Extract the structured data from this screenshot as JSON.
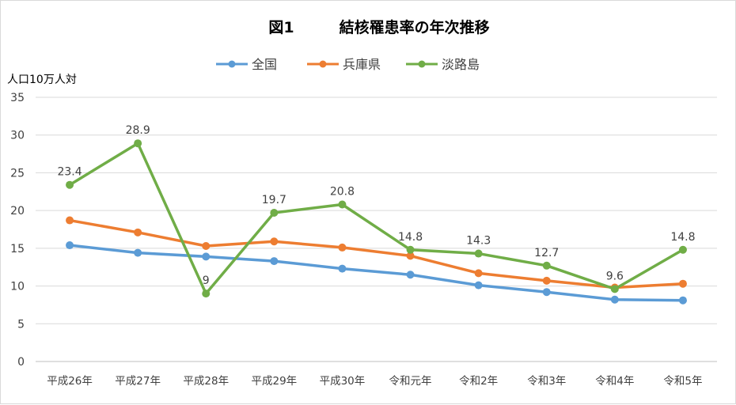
{
  "chart_data": {
    "type": "line",
    "title": "図1　　　結核罹患率の年次推移",
    "ylabel": "人口10万人対",
    "xlabel": "",
    "ylim": [
      0,
      35
    ],
    "yticks": [
      0,
      5,
      10,
      15,
      20,
      25,
      30,
      35
    ],
    "grid": true,
    "legend": "top",
    "categories": [
      "平成26年",
      "平成27年",
      "平成28年",
      "平成29年",
      "平成30年",
      "令和元年",
      "令和2年",
      "令和3年",
      "令和4年",
      "令和5年"
    ],
    "series": [
      {
        "name": "全国",
        "color": "#5b9bd5",
        "values": [
          15.4,
          14.4,
          13.9,
          13.3,
          12.3,
          11.5,
          10.1,
          9.2,
          8.2,
          8.1
        ],
        "labels": false
      },
      {
        "name": "兵庫県",
        "color": "#ed7d31",
        "values": [
          18.7,
          17.1,
          15.3,
          15.9,
          15.1,
          14.0,
          11.7,
          10.7,
          9.8,
          10.3
        ],
        "labels": false
      },
      {
        "name": "淡路島",
        "color": "#70ad47",
        "values": [
          23.4,
          28.9,
          9,
          19.7,
          20.8,
          14.8,
          14.3,
          12.7,
          9.6,
          14.8
        ],
        "labels": true
      }
    ]
  }
}
